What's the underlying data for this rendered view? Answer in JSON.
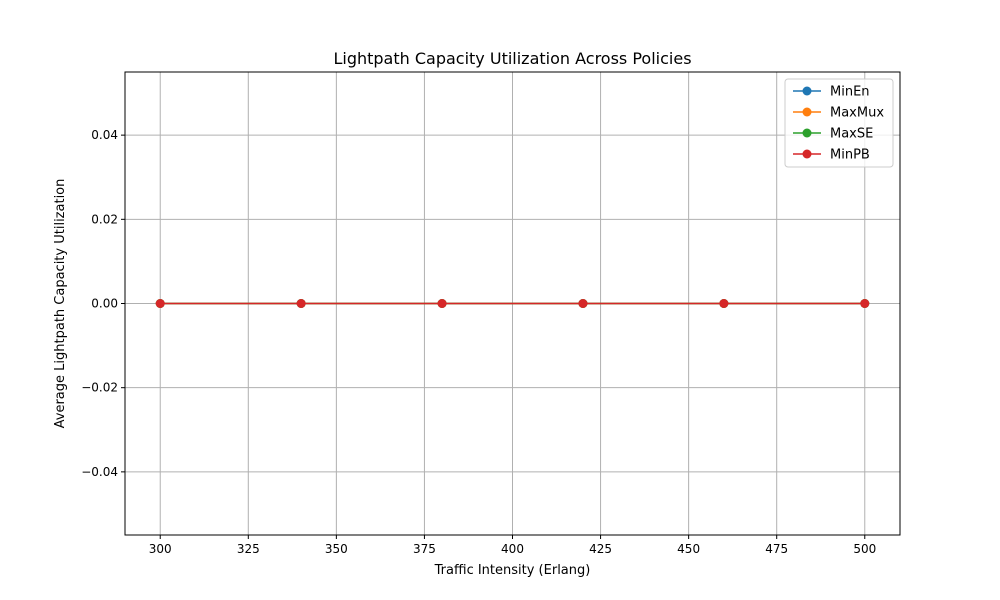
{
  "chart_data": {
    "type": "line",
    "title": "Lightpath Capacity Utilization Across Policies",
    "xlabel": "Traffic Intensity (Erlang)",
    "ylabel": "Average Lightpath Capacity Utilization",
    "x": [
      300,
      340,
      380,
      420,
      460,
      500
    ],
    "xlim": [
      290,
      510
    ],
    "ylim": [
      -0.055,
      0.055
    ],
    "xticks": [
      300,
      325,
      350,
      375,
      400,
      425,
      450,
      475,
      500
    ],
    "xtick_labels": [
      "300",
      "325",
      "350",
      "375",
      "400",
      "425",
      "450",
      "475",
      "500"
    ],
    "yticks": [
      -0.04,
      -0.02,
      0.0,
      0.02,
      0.04
    ],
    "ytick_labels": [
      "−0.04",
      "−0.02",
      "0.00",
      "0.02",
      "0.04"
    ],
    "grid": true,
    "legend_position": "top-right",
    "marker": "circle",
    "series": [
      {
        "name": "MinEn",
        "color": "#1f77b4",
        "values": [
          0,
          0,
          0,
          0,
          0,
          0
        ]
      },
      {
        "name": "MaxMux",
        "color": "#ff7f0e",
        "values": [
          0,
          0,
          0,
          0,
          0,
          0
        ]
      },
      {
        "name": "MaxSE",
        "color": "#2ca02c",
        "values": [
          0,
          0,
          0,
          0,
          0,
          0
        ]
      },
      {
        "name": "MinPB",
        "color": "#d62728",
        "values": [
          0,
          0,
          0,
          0,
          0,
          0
        ]
      }
    ]
  }
}
